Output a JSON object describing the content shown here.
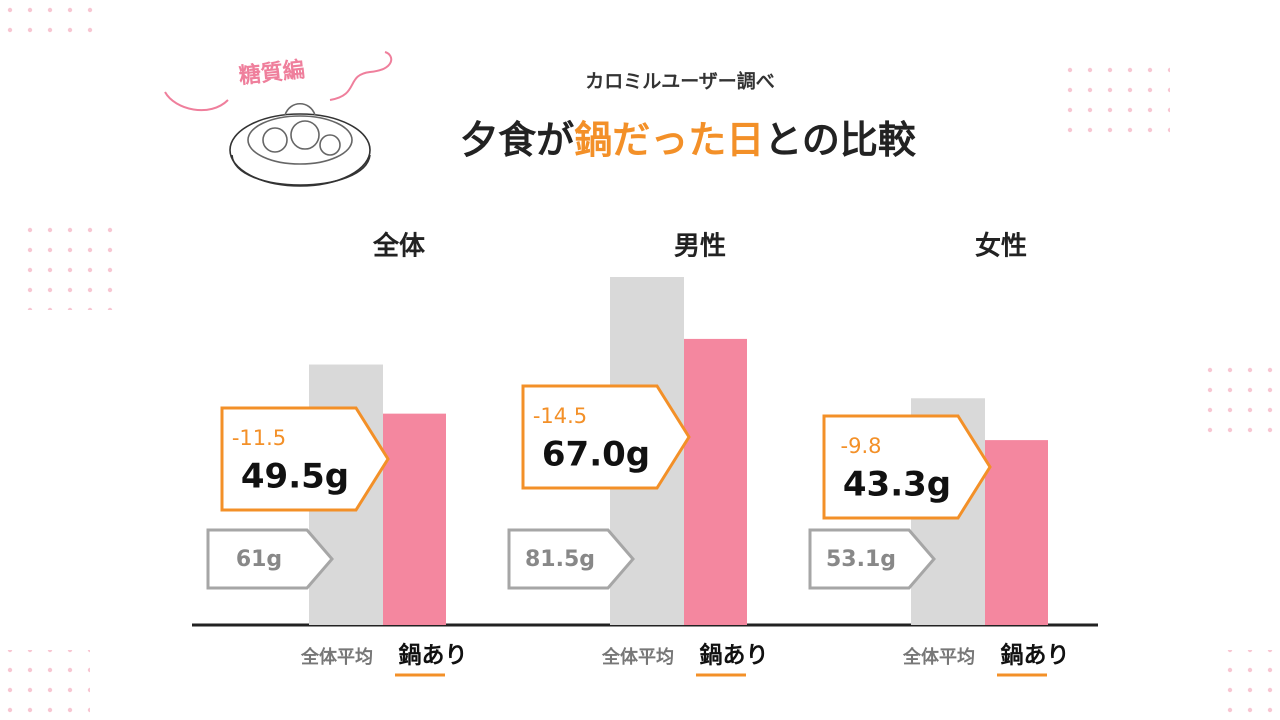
{
  "chart_data": {
    "type": "bar",
    "badge": "糖質編",
    "subtitle": "カロミルユーザー調べ",
    "title_parts": [
      "夕食が",
      "鍋だった日",
      "との比較"
    ],
    "categories": [
      "全体",
      "男性",
      "女性"
    ],
    "series": [
      {
        "name": "全体平均",
        "color": "#d9d9d9",
        "values": [
          61,
          81.5,
          53.1
        ],
        "value_labels": [
          "61g",
          "81.5g",
          "53.1g"
        ]
      },
      {
        "name": "鍋あり",
        "color": "#f4879f",
        "values": [
          49.5,
          67.0,
          43.3
        ],
        "value_labels": [
          "49.5g",
          "67.0g",
          "43.3g"
        ]
      }
    ],
    "differences": [
      -11.5,
      -14.5,
      -9.8
    ]
  }
}
